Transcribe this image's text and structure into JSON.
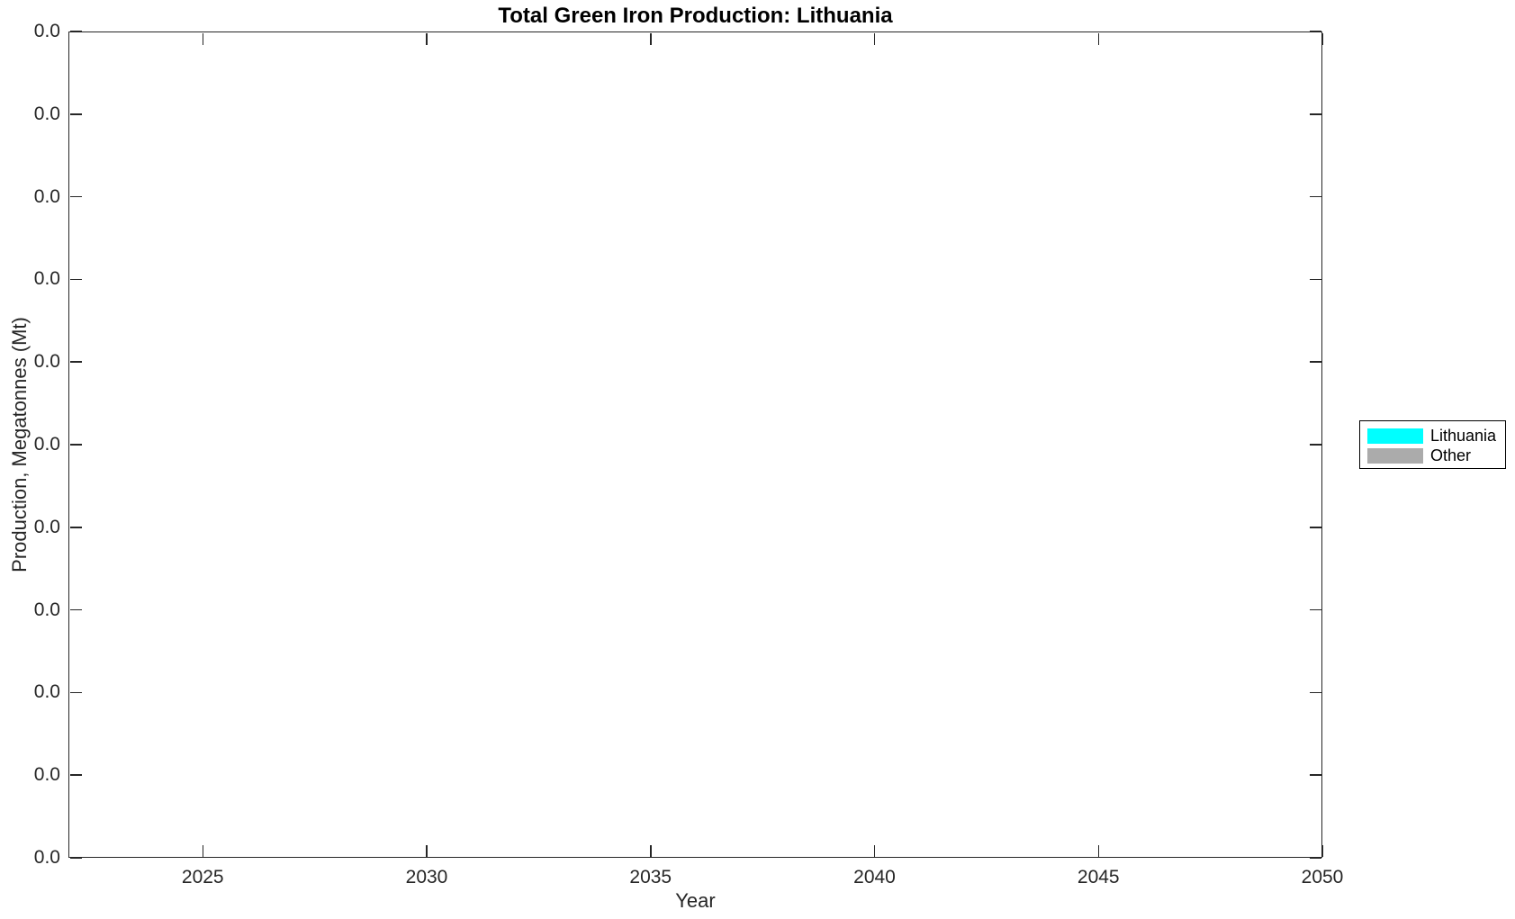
{
  "chart_data": {
    "type": "area",
    "title": "Total Green Iron Production: Lithuania",
    "xlabel": "Year",
    "ylabel": "Production, Megatonnes (Mt)",
    "xlim": [
      2022,
      2050
    ],
    "x_ticks": [
      2025,
      2030,
      2035,
      2040,
      2045,
      2050
    ],
    "y_tick_labels": [
      "0.0",
      "0.0",
      "0.0",
      "0.0",
      "0.0",
      "0.0",
      "0.0",
      "0.0",
      "0.0",
      "0.0",
      "0.0"
    ],
    "grid": false,
    "legend_position": "northeast-outside",
    "series": [
      {
        "name": "Lithuania",
        "color": "#00ffff",
        "values": []
      },
      {
        "name": "Other",
        "color": "#ababab",
        "values": []
      }
    ],
    "note": "Plot area is empty; every y-axis tick label reads 0.0, ticks point inward and are mirrored on the top and right box edges."
  }
}
